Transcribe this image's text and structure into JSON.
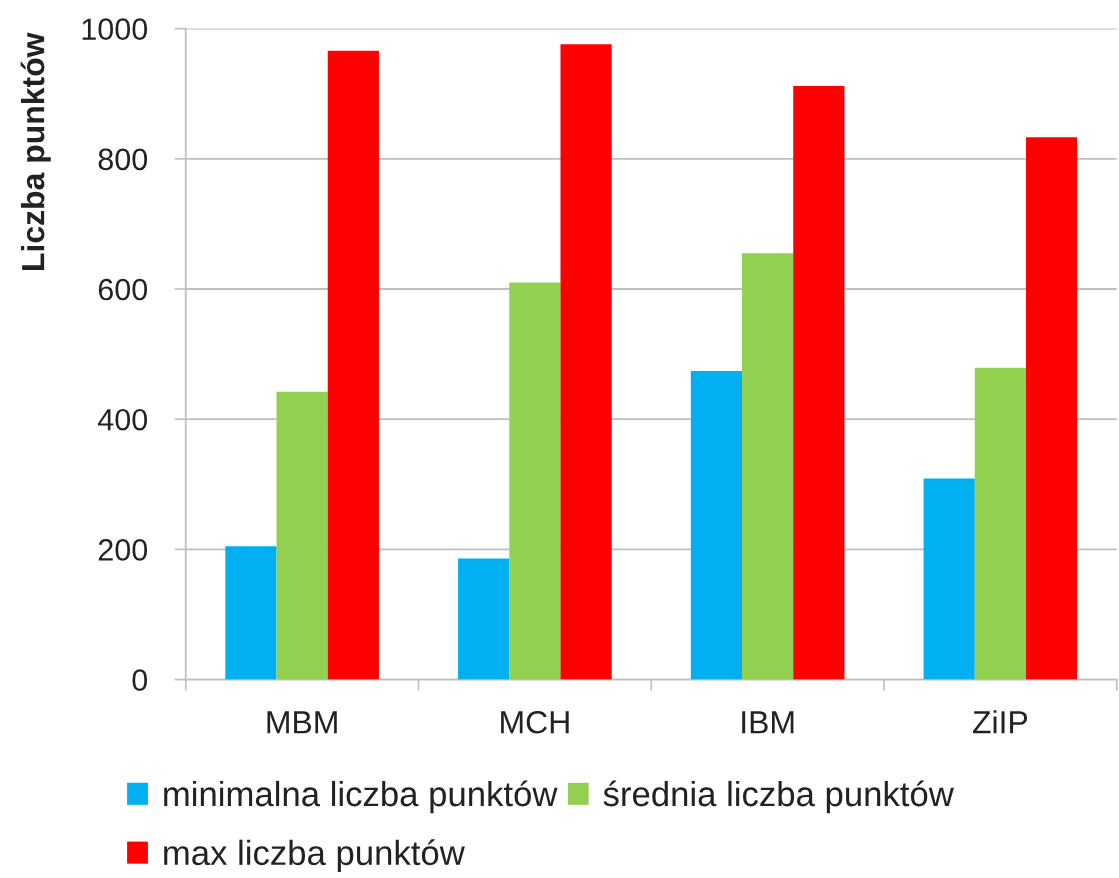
{
  "chart_data": {
    "type": "bar",
    "ylabel": "Liczba punktów",
    "categories": [
      "MBM",
      "MCH",
      "IBM",
      "ZiIP"
    ],
    "series": [
      {
        "name": "minimalna liczba punktów",
        "color": "#00b0f0",
        "values": [
          205,
          186,
          474,
          309
        ]
      },
      {
        "name": "średnia liczba punktów",
        "color": "#92d050",
        "values": [
          442,
          610,
          655,
          479
        ]
      },
      {
        "name": "max liczba punktów",
        "color": "#ff0000",
        "values": [
          966,
          976,
          912,
          833
        ]
      }
    ],
    "ylim": [
      0,
      1000
    ],
    "yticks": [
      0,
      200,
      400,
      600,
      800,
      1000
    ],
    "grid": "y",
    "legend": "bottom"
  }
}
